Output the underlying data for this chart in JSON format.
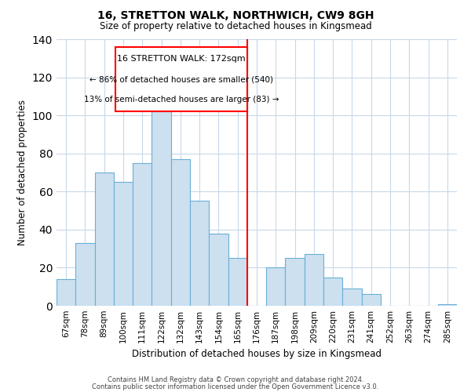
{
  "title": "16, STRETTON WALK, NORTHWICH, CW9 8GH",
  "subtitle": "Size of property relative to detached houses in Kingsmead",
  "xlabel": "Distribution of detached houses by size in Kingsmead",
  "ylabel": "Number of detached properties",
  "bin_labels": [
    "67sqm",
    "78sqm",
    "89sqm",
    "100sqm",
    "111sqm",
    "122sqm",
    "132sqm",
    "143sqm",
    "154sqm",
    "165sqm",
    "176sqm",
    "187sqm",
    "198sqm",
    "209sqm",
    "220sqm",
    "231sqm",
    "241sqm",
    "252sqm",
    "263sqm",
    "274sqm",
    "285sqm"
  ],
  "bar_values": [
    14,
    33,
    70,
    65,
    75,
    102,
    77,
    55,
    38,
    25,
    0,
    20,
    25,
    27,
    15,
    9,
    6,
    0,
    0,
    0,
    1
  ],
  "bar_color": "#cce0f0",
  "bar_edge_color": "#6aafd6",
  "reference_line_x": 10.0,
  "reference_line_label": "16 STRETTON WALK: 172sqm",
  "annotation_line1": "← 86% of detached houses are smaller (540)",
  "annotation_line2": "13% of semi-detached houses are larger (83) →",
  "ylim": [
    0,
    140
  ],
  "yticks": [
    0,
    20,
    40,
    60,
    80,
    100,
    120,
    140
  ],
  "footer_line1": "Contains HM Land Registry data © Crown copyright and database right 2024.",
  "footer_line2": "Contains public sector information licensed under the Open Government Licence v3.0.",
  "background_color": "#ffffff",
  "grid_color": "#c8d8e8"
}
